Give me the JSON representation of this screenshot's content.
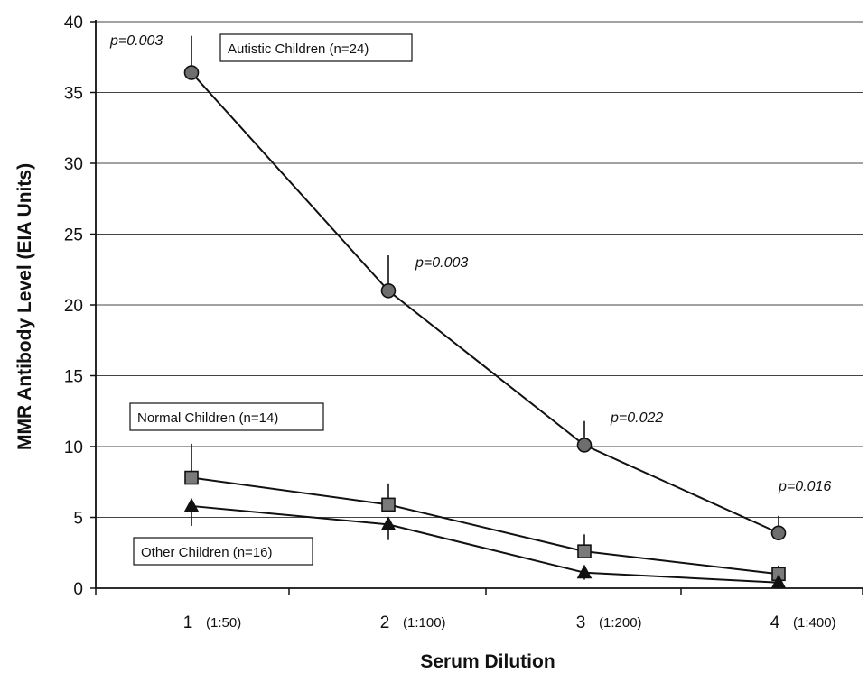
{
  "chart_data": {
    "type": "line",
    "title": "",
    "xlabel": "Serum Dilution",
    "ylabel": "MMR Antibody Level (EIA Units)",
    "ylim": [
      0,
      40
    ],
    "yticks": [
      0,
      5,
      10,
      15,
      20,
      25,
      30,
      35,
      40
    ],
    "grid": true,
    "x": [
      1,
      2,
      3,
      4
    ],
    "x_tick_labels": [
      "1",
      "2",
      "3",
      "4"
    ],
    "x_tick_sublabels": [
      "(1:50)",
      "(1:100)",
      "(1:200)",
      "(1:400)"
    ],
    "series": [
      {
        "name": "Autistic Children (n=24)",
        "marker": "circle",
        "values": [
          36.4,
          21.0,
          10.1,
          3.9
        ],
        "error_upper": [
          39.0,
          23.5,
          11.8,
          5.1
        ]
      },
      {
        "name": "Normal Children (n=14)",
        "marker": "square",
        "values": [
          7.8,
          5.9,
          2.6,
          1.0
        ],
        "error_upper": [
          10.2,
          7.4,
          3.8,
          1.6
        ]
      },
      {
        "name": "Other Children (n=16)",
        "marker": "triangle",
        "values": [
          5.8,
          4.5,
          1.1,
          0.4
        ],
        "error_lower": [
          4.4,
          3.4,
          0.6,
          0.2
        ]
      }
    ],
    "annotations": [
      {
        "text": "p=0.003",
        "x": 1,
        "series": 0
      },
      {
        "text": "p=0.003",
        "x": 2,
        "series": 0
      },
      {
        "text": "p=0.022",
        "x": 3,
        "series": 0
      },
      {
        "text": "p=0.016",
        "x": 4,
        "series": 0
      }
    ]
  }
}
